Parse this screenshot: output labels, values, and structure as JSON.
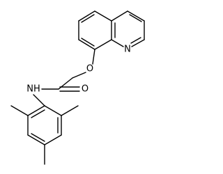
{
  "atom_labels": [
    "N",
    "O",
    "O",
    "NH"
  ]
}
